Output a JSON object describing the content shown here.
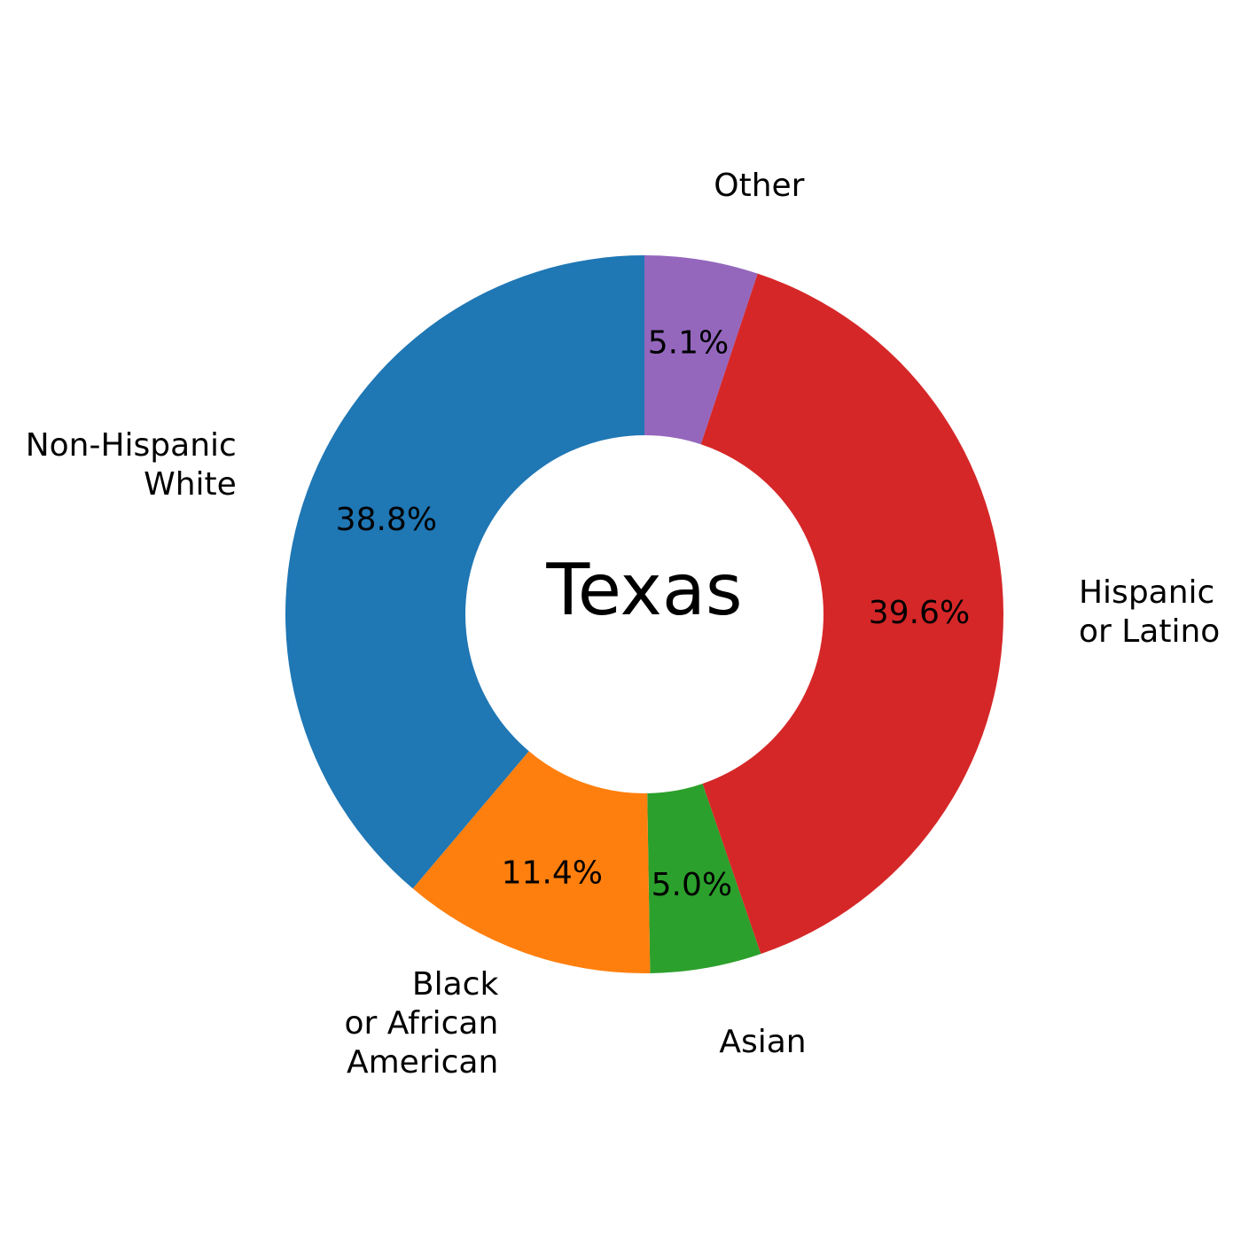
{
  "chart_data": {
    "type": "pie",
    "title": "Texas",
    "slices": [
      {
        "label": "Other",
        "value": 5.1,
        "pct_label": "5.1%",
        "color": "#9467bd"
      },
      {
        "label": "Hispanic\nor Latino",
        "value": 39.6,
        "pct_label": "39.6%",
        "color": "#d62728"
      },
      {
        "label": "Asian",
        "value": 5.0,
        "pct_label": "5.0%",
        "color": "#2ca02c"
      },
      {
        "label": "Black\nor African\nAmerican",
        "value": 11.4,
        "pct_label": "11.4%",
        "color": "#ff7f0e"
      },
      {
        "label": "Non-Hispanic\nWhite",
        "value": 38.8,
        "pct_label": "38.8%",
        "color": "#1f77b4"
      }
    ],
    "start": "top",
    "direction": "clockwise",
    "donut": true
  }
}
